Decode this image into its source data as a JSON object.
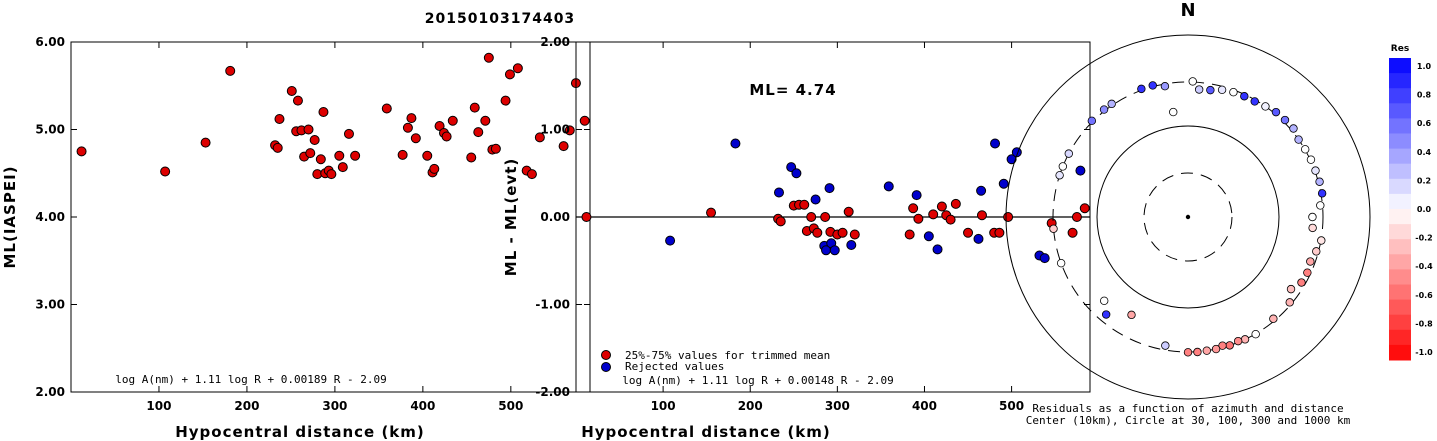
{
  "title": "20150103174403",
  "chart_data": [
    {
      "type": "scatter",
      "name": "ml-vs-distance",
      "xlabel": "Hypocentral distance (km)",
      "ylabel": "ML(IASPEI)",
      "xlim": [
        0,
        590
      ],
      "ylim": [
        2.0,
        6.0
      ],
      "xticks": [
        100,
        200,
        300,
        400,
        500
      ],
      "yticks": [
        "2.00",
        "3.00",
        "4.00",
        "5.00",
        "6.00"
      ],
      "formula": "log A(nm) + 1.11 log R + 0.00189 R - 2.09",
      "points": [
        [
          12,
          4.75
        ],
        [
          107,
          4.52
        ],
        [
          153,
          4.85
        ],
        [
          181,
          5.67
        ],
        [
          232,
          4.82
        ],
        [
          235,
          4.79
        ],
        [
          237,
          5.12
        ],
        [
          251,
          5.44
        ],
        [
          256,
          4.98
        ],
        [
          258,
          5.33
        ],
        [
          262,
          4.99
        ],
        [
          265,
          4.69
        ],
        [
          270,
          5.0
        ],
        [
          272,
          4.73
        ],
        [
          277,
          4.88
        ],
        [
          280,
          4.49
        ],
        [
          284,
          4.66
        ],
        [
          287,
          5.2
        ],
        [
          289,
          4.5
        ],
        [
          293,
          4.53
        ],
        [
          296,
          4.49
        ],
        [
          305,
          4.7
        ],
        [
          309,
          4.57
        ],
        [
          316,
          4.95
        ],
        [
          323,
          4.7
        ],
        [
          359,
          5.24
        ],
        [
          377,
          4.71
        ],
        [
          383,
          5.02
        ],
        [
          387,
          5.13
        ],
        [
          392,
          4.9
        ],
        [
          405,
          4.7
        ],
        [
          411,
          4.51
        ],
        [
          413,
          4.55
        ],
        [
          419,
          5.04
        ],
        [
          424,
          4.96
        ],
        [
          427,
          4.92
        ],
        [
          434,
          5.1
        ],
        [
          455,
          4.68
        ],
        [
          459,
          5.25
        ],
        [
          463,
          4.97
        ],
        [
          471,
          5.1
        ],
        [
          475,
          5.82
        ],
        [
          479,
          4.77
        ],
        [
          483,
          4.78
        ],
        [
          494,
          5.33
        ],
        [
          499,
          5.63
        ],
        [
          508,
          5.7
        ],
        [
          518,
          4.53
        ],
        [
          524,
          4.49
        ],
        [
          533,
          4.91
        ],
        [
          560,
          4.81
        ],
        [
          567,
          4.99
        ],
        [
          574,
          5.53
        ],
        [
          584,
          5.1
        ]
      ]
    },
    {
      "type": "scatter",
      "name": "residual-vs-distance",
      "xlabel": "Hypocentral distance (km)",
      "ylabel": "ML - ML(evt)",
      "xlim": [
        0,
        590
      ],
      "ylim": [
        -2.0,
        2.0
      ],
      "xticks": [
        100,
        200,
        300,
        400,
        500
      ],
      "yticks": [
        "-2.00",
        "-1.00",
        "0.00",
        "1.00",
        "2.00"
      ],
      "ml_label": "ML= 4.74",
      "formula": "log A(nm) + 1.11 log R + 0.00148 R - 2.09",
      "legend": [
        {
          "label": "25%-75% values for trimmed mean",
          "color": "#dd0000"
        },
        {
          "label": "Rejected values",
          "color": "#0000cc"
        }
      ],
      "series": [
        {
          "name": "25%-75% values for trimmed mean",
          "color": "#dd0000",
          "points": [
            [
              12,
              0.0
            ],
            [
              155,
              0.05
            ],
            [
              232,
              -0.02
            ],
            [
              235,
              -0.05
            ],
            [
              250,
              0.13
            ],
            [
              256,
              0.14
            ],
            [
              262,
              0.14
            ],
            [
              265,
              -0.16
            ],
            [
              270,
              0.0
            ],
            [
              273,
              -0.13
            ],
            [
              277,
              -0.18
            ],
            [
              286,
              0.0
            ],
            [
              292,
              -0.17
            ],
            [
              300,
              -0.2
            ],
            [
              306,
              -0.18
            ],
            [
              313,
              0.06
            ],
            [
              320,
              -0.2
            ],
            [
              383,
              -0.2
            ],
            [
              387,
              0.1
            ],
            [
              393,
              -0.02
            ],
            [
              410,
              0.03
            ],
            [
              420,
              0.12
            ],
            [
              425,
              0.02
            ],
            [
              430,
              -0.03
            ],
            [
              436,
              0.15
            ],
            [
              450,
              -0.18
            ],
            [
              466,
              0.02
            ],
            [
              480,
              -0.18
            ],
            [
              486,
              -0.18
            ],
            [
              496,
              0.0
            ],
            [
              546,
              -0.07
            ],
            [
              570,
              -0.18
            ],
            [
              575,
              0.0
            ],
            [
              584,
              0.1
            ]
          ]
        },
        {
          "name": "Rejected values",
          "color": "#0000cc",
          "points": [
            [
              108,
              -0.27
            ],
            [
              183,
              0.84
            ],
            [
              233,
              0.28
            ],
            [
              247,
              0.57
            ],
            [
              253,
              0.5
            ],
            [
              275,
              0.2
            ],
            [
              285,
              -0.33
            ],
            [
              287,
              -0.38
            ],
            [
              291,
              0.33
            ],
            [
              293,
              -0.3
            ],
            [
              297,
              -0.38
            ],
            [
              316,
              -0.32
            ],
            [
              359,
              0.35
            ],
            [
              391,
              0.25
            ],
            [
              405,
              -0.22
            ],
            [
              415,
              -0.37
            ],
            [
              462,
              -0.25
            ],
            [
              465,
              0.3
            ],
            [
              481,
              0.84
            ],
            [
              491,
              0.38
            ],
            [
              500,
              0.66
            ],
            [
              506,
              0.74
            ],
            [
              532,
              -0.44
            ],
            [
              538,
              -0.47
            ],
            [
              579,
              0.53
            ]
          ]
        }
      ]
    },
    {
      "type": "scatter",
      "name": "azimuth-distance-map",
      "north_label": "N",
      "caption1": "Residuals as a function of azimuth and distance",
      "caption2": "Center (10km), Circle at 30, 100, 300 and 1000 km",
      "colorbar": {
        "title": "Res",
        "ticks": [
          "1.0",
          "0.8",
          "0.6",
          "0.4",
          "0.2",
          "0.0",
          "-0.2",
          "-0.4",
          "-0.6",
          "-0.8",
          "-1.0"
        ]
      },
      "stations": [
        [
          2,
          310,
          0.0
        ],
        [
          5,
          268,
          0.2
        ],
        [
          10,
          272,
          0.65
        ],
        [
          15,
          285,
          0.1
        ],
        [
          20,
          290,
          0.0
        ],
        [
          25,
          292,
          0.8
        ],
        [
          30,
          293,
          0.8
        ],
        [
          35,
          300,
          0.05
        ],
        [
          40,
          328,
          0.65
        ],
        [
          45,
          332,
          0.55
        ],
        [
          50,
          340,
          0.3
        ],
        [
          55,
          300,
          0.3
        ],
        [
          60,
          305,
          0.0
        ],
        [
          65,
          310,
          0.0
        ],
        [
          70,
          310,
          0.1
        ],
        [
          75,
          318,
          0.3
        ],
        [
          80,
          318,
          0.8
        ],
        [
          85,
          290,
          0.0
        ],
        [
          90,
          252,
          0.0
        ],
        [
          95,
          255,
          -0.15
        ],
        [
          100,
          305,
          -0.1
        ],
        [
          105,
          290,
          -0.2
        ],
        [
          110,
          278,
          -0.35
        ],
        [
          115,
          285,
          -0.5
        ],
        [
          120,
          282,
          -0.5
        ],
        [
          125,
          258,
          -0.25
        ],
        [
          130,
          290,
          -0.3
        ],
        [
          140,
          290,
          -0.3
        ],
        [
          150,
          305,
          0.0
        ],
        [
          155,
          300,
          -0.3
        ],
        [
          158,
          295,
          -0.45
        ],
        [
          162,
          300,
          -0.55
        ],
        [
          165,
          292,
          -0.5
        ],
        [
          168,
          300,
          -0.4
        ],
        [
          172,
          300,
          -0.35
        ],
        [
          176,
          305,
          -0.5
        ],
        [
          180,
          305,
          -0.5
        ],
        [
          190,
          280,
          0.2
        ],
        [
          210,
          200,
          -0.35
        ],
        [
          220,
          265,
          0.8
        ],
        [
          225,
          225,
          0.0
        ],
        [
          250,
          300,
          0.0
        ],
        [
          265,
          300,
          -0.2
        ],
        [
          288,
          300,
          0.1
        ],
        [
          292,
          300,
          0.0
        ],
        [
          298,
          300,
          0.15
        ],
        [
          315,
          315,
          0.55
        ],
        [
          322,
          320,
          0.45
        ],
        [
          326,
          322,
          0.3
        ],
        [
          340,
          320,
          0.8
        ],
        [
          345,
          318,
          0.8
        ],
        [
          350,
          290,
          0.4
        ],
        [
          352,
          168,
          0.0
        ]
      ]
    }
  ]
}
